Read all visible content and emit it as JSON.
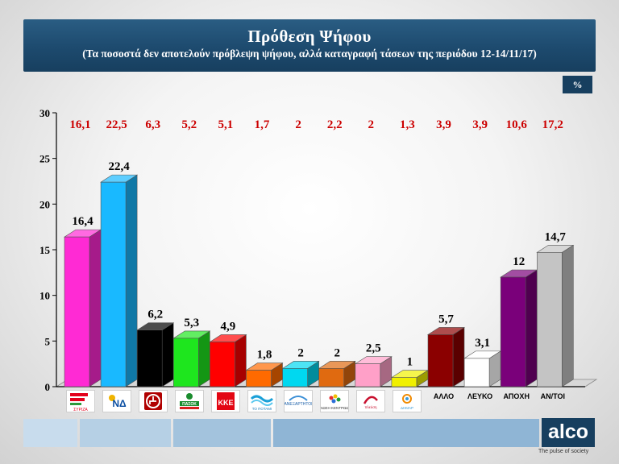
{
  "header": {
    "title": "Πρόθεση Ψήφου",
    "subtitle": "(Τα ποσοστά δεν αποτελούν πρόβλεψη ψήφου, αλλά καταγραφή τάσεων  της περιόδου 12-14/11/17)"
  },
  "percent_badge": "%",
  "colors": {
    "header_bg": "#1d4a6e",
    "top_label_red": "#cc0000"
  },
  "logos": [
    {
      "icon": "syriza-logo",
      "text": "ΣΥΡΙΖΑ"
    },
    {
      "icon": "nd-logo",
      "text": "ΝΔ"
    },
    {
      "icon": "golden-dawn-logo",
      "text": ""
    },
    {
      "icon": "pasok-logo",
      "text": "ΠΑΣΟΚ"
    },
    {
      "icon": "kke-logo",
      "text": "ΚΚΕ"
    },
    {
      "icon": "potami-logo",
      "text": "ΤΟ ΠΟΤΑΜΙ"
    },
    {
      "icon": "anel-logo",
      "text": ""
    },
    {
      "icon": "enosi-kentroon-logo",
      "text": ""
    },
    {
      "icon": "plefsi-eleftherias-logo",
      "text": ""
    },
    {
      "icon": "dimar-logo",
      "text": ""
    }
  ],
  "alco": {
    "logo_text": "alco",
    "tagline": "The pulse of society"
  },
  "chart_data": {
    "type": "bar",
    "categories": [
      "ΣΥΡΙΖΑ",
      "ΝΔ",
      "Χρυσή Αυγή",
      "ΠΑΣΟΚ",
      "ΚΚΕ",
      "Το Ποτάμι",
      "ΑΝΕΛ",
      "Ένωση Κεντρώων",
      "Πλεύση Ελευθερίας",
      "ΔΗΜΑΡ",
      "ΑΛΛΟ",
      "ΛΕΥΚΟ",
      "ΑΠΟΧΗ",
      "ΑΝ/ΤΟΙ"
    ],
    "x_tick_labels": [
      "",
      "",
      "",
      "",
      "",
      "",
      "",
      "",
      "",
      "",
      "ΑΛΛΟ",
      "ΛΕΥΚΟ",
      "ΑΠΟΧΗ",
      "ΑΝ/ΤΟΙ"
    ],
    "values": [
      16.4,
      22.4,
      6.2,
      5.3,
      4.9,
      1.8,
      2,
      2,
      2.5,
      1,
      5.7,
      3.1,
      12,
      14.7
    ],
    "value_labels": [
      "16,4",
      "22,4",
      "6,2",
      "5,3",
      "4,9",
      "1,8",
      "2",
      "2",
      "2,5",
      "1",
      "5,7",
      "3,1",
      "12",
      "14,7"
    ],
    "previous_values": [
      16.1,
      22.5,
      6.3,
      5.2,
      5.1,
      1.7,
      2,
      2.2,
      2,
      1.3,
      3.9,
      3.9,
      10.6,
      17.2
    ],
    "previous_labels": [
      "16,1",
      "22,5",
      "6,3",
      "5,2",
      "5,1",
      "1,7",
      "2",
      "2,2",
      "2",
      "1,3",
      "3,9",
      "3,9",
      "10,6",
      "17,2"
    ],
    "bar_colors": [
      "#ff2ad4",
      "#19b9ff",
      "#000000",
      "#1ee61e",
      "#ff0000",
      "#ff6a00",
      "#00d8f0",
      "#e06a10",
      "#ffa0c8",
      "#f0f000",
      "#8b0000",
      "#ffffff",
      "#7a007a",
      "#c4c4c4"
    ],
    "y_ticks": [
      0,
      5,
      10,
      15,
      20,
      25,
      30
    ],
    "ylim": [
      0,
      30
    ],
    "title": "Πρόθεση Ψήφου",
    "xlabel": "",
    "ylabel": "%",
    "grid": false,
    "legend": "none"
  }
}
